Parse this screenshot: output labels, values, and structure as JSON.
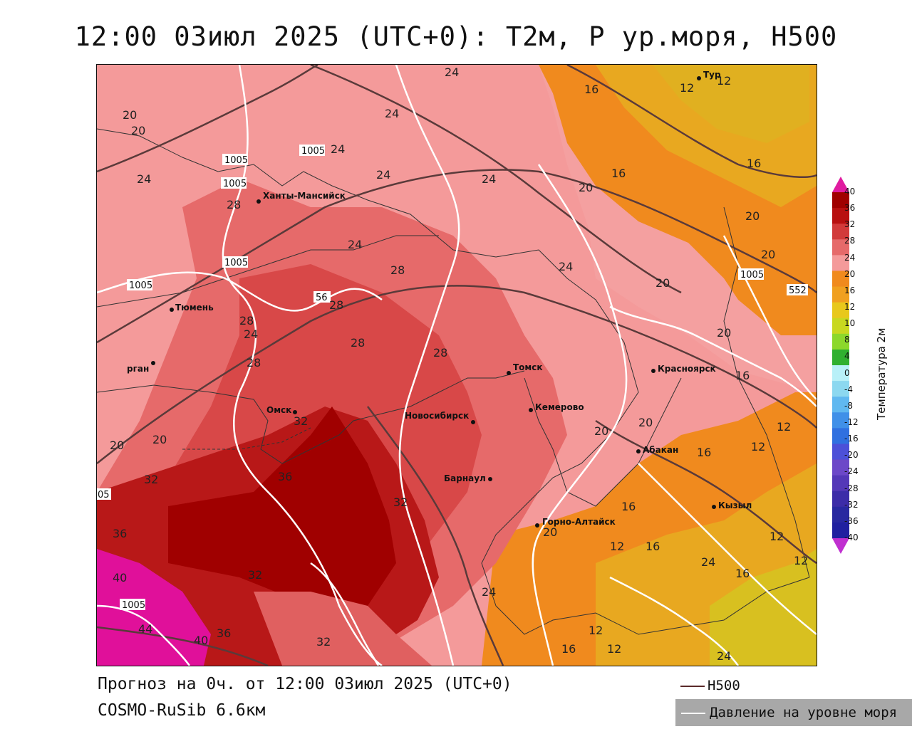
{
  "title": "12:00 03июл 2025 (UTC+0): T2м, P ур.моря, H500",
  "footer": {
    "forecast": "Прогноз на 0ч. от 12:00 03июл 2025 (UTC+0)",
    "model": "COSMO-RuSib 6.6км"
  },
  "legend": {
    "h500": "H500",
    "slp": "Давление на уровне моря",
    "colorbar_title": "Температура 2м",
    "colorbar_ticks": [
      "40",
      "36",
      "32",
      "28",
      "24",
      "20",
      "16",
      "12",
      "10",
      "8",
      "4",
      "0",
      "-4",
      "-8",
      "-12",
      "-16",
      "-20",
      "-24",
      "-28",
      "-32",
      "-36",
      "-40"
    ],
    "colorbar_colors": [
      "#a00000",
      "#b81010",
      "#d23a3a",
      "#e66a6a",
      "#f49a9a",
      "#f08a1e",
      "#f0a020",
      "#e8c81c",
      "#c8d820",
      "#8cd82c",
      "#30b030",
      "#b8f0f8",
      "#8cd8f0",
      "#60b8f0",
      "#4090e8",
      "#3070e0",
      "#4c50d8",
      "#6c48c8",
      "#5438b8",
      "#3c2ca8",
      "#2828a0",
      "#2020a0"
    ],
    "colorbar_top_color": "#e01ca0",
    "colorbar_bottom_color": "#c030d0"
  },
  "cities": [
    {
      "name": "Ханты-Мансийск"
    },
    {
      "name": "Тюмень"
    },
    {
      "name": "рган"
    },
    {
      "name": "Омск"
    },
    {
      "name": "Новосибирск"
    },
    {
      "name": "Томск"
    },
    {
      "name": "Кемерово"
    },
    {
      "name": "Барнаул"
    },
    {
      "name": "Горно-Алтайск"
    },
    {
      "name": "Красноярск"
    },
    {
      "name": "Абакан"
    },
    {
      "name": "Кызыл"
    },
    {
      "name": "Тур"
    }
  ],
  "slp_labels": [
    "1005",
    "1005",
    "1005",
    "1005",
    "1005",
    "1005",
    "1005",
    "05"
  ],
  "h500_labels": [
    "56",
    "552"
  ],
  "temp_labels": [
    "20",
    "20",
    "24",
    "24",
    "24",
    "24",
    "24",
    "24",
    "24",
    "24",
    "24",
    "28",
    "28",
    "28",
    "28",
    "28",
    "28",
    "28",
    "32",
    "32",
    "32",
    "32",
    "32",
    "36",
    "36",
    "36",
    "40",
    "40",
    "44",
    "16",
    "16",
    "16",
    "16",
    "16",
    "16",
    "16",
    "16",
    "12",
    "12",
    "12",
    "12",
    "12",
    "12",
    "12",
    "12",
    "20",
    "20",
    "20",
    "20",
    "20",
    "20",
    "20",
    "20",
    "24",
    "24",
    "24",
    "20",
    "20",
    "16",
    "12"
  ]
}
